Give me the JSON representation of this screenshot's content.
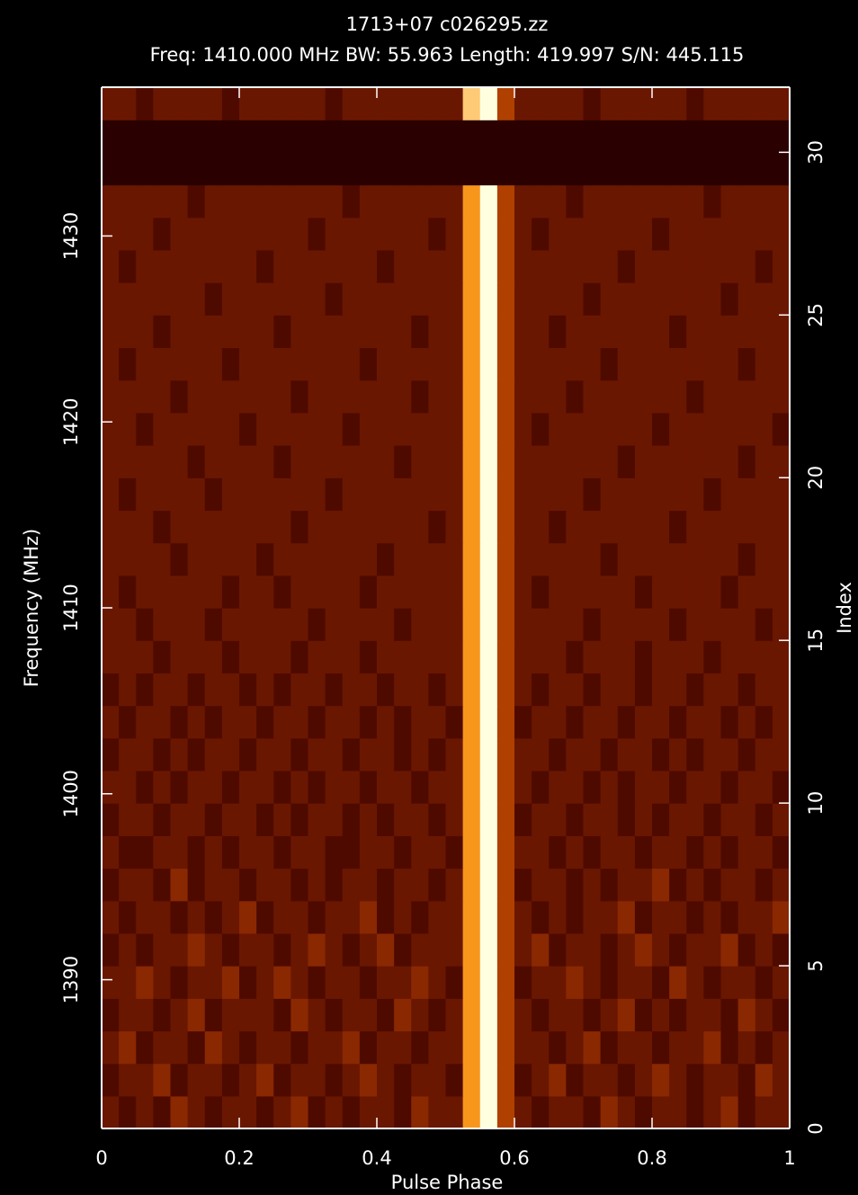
{
  "chart_data": {
    "type": "heatmap",
    "title": "1713+07 c026295.zz",
    "subtitle": "Freq: 1410.000 MHz BW: 55.963 Length: 419.997 S/N: 445.115",
    "x_label": "Pulse Phase",
    "y_label": "Frequency (MHz)",
    "y2_label": "Index",
    "xlim": [
      0,
      1
    ],
    "xticks": [
      0,
      0.2,
      0.4,
      0.6,
      0.8,
      1
    ],
    "ylim": [
      1382,
      1438
    ],
    "yticks": [
      1390,
      1400,
      1410,
      1420,
      1430
    ],
    "y2lim": [
      0,
      32
    ],
    "y2ticks": [
      0,
      5,
      10,
      15,
      20,
      25,
      30
    ],
    "zlim": [
      0,
      9
    ],
    "colormap": [
      "#2a0100",
      "#4a0800",
      "#7a1e02",
      "#c04a00",
      "#ffa020",
      "#ffffe0"
    ],
    "values": [
      [
        3,
        2,
        3,
        2,
        4,
        3,
        2,
        3,
        3,
        2,
        3,
        4,
        2,
        3,
        2,
        3,
        3,
        2,
        4,
        3,
        3,
        7,
        9,
        5,
        3,
        2,
        3,
        3,
        2,
        4,
        3,
        2,
        3,
        3,
        2,
        3,
        4,
        2,
        3,
        3
      ],
      [
        2,
        3,
        3,
        4,
        2,
        3,
        3,
        2,
        3,
        4,
        2,
        3,
        3,
        2,
        3,
        4,
        3,
        2,
        3,
        3,
        2,
        7,
        9,
        5,
        2,
        3,
        4,
        2,
        3,
        3,
        2,
        3,
        4,
        3,
        2,
        3,
        3,
        2,
        4,
        3
      ],
      [
        3,
        4,
        2,
        3,
        3,
        2,
        4,
        3,
        2,
        3,
        3,
        2,
        3,
        3,
        4,
        2,
        3,
        3,
        2,
        3,
        3,
        7,
        9,
        5,
        3,
        3,
        2,
        3,
        4,
        2,
        3,
        3,
        2,
        3,
        3,
        4,
        2,
        3,
        2,
        3
      ],
      [
        2,
        3,
        3,
        2,
        3,
        4,
        2,
        3,
        3,
        3,
        2,
        4,
        3,
        2,
        3,
        3,
        2,
        4,
        3,
        2,
        3,
        7,
        9,
        5,
        3,
        2,
        3,
        3,
        2,
        3,
        4,
        2,
        3,
        2,
        3,
        3,
        2,
        4,
        3,
        2
      ],
      [
        3,
        3,
        4,
        3,
        2,
        3,
        3,
        4,
        2,
        3,
        4,
        3,
        2,
        3,
        3,
        2,
        3,
        3,
        4,
        3,
        2,
        7,
        9,
        5,
        2,
        3,
        3,
        4,
        3,
        2,
        3,
        3,
        2,
        4,
        3,
        2,
        3,
        3,
        2,
        3
      ],
      [
        2,
        3,
        2,
        3,
        3,
        4,
        3,
        2,
        3,
        3,
        2,
        3,
        4,
        3,
        2,
        3,
        4,
        2,
        3,
        3,
        3,
        7,
        9,
        5,
        3,
        4,
        2,
        3,
        3,
        2,
        3,
        4,
        3,
        2,
        3,
        3,
        4,
        2,
        3,
        2
      ],
      [
        3,
        2,
        3,
        3,
        2,
        3,
        2,
        3,
        4,
        2,
        3,
        3,
        2,
        3,
        3,
        4,
        2,
        3,
        2,
        3,
        3,
        7,
        9,
        5,
        3,
        2,
        3,
        2,
        3,
        3,
        4,
        2,
        3,
        3,
        2,
        3,
        2,
        3,
        3,
        4
      ],
      [
        2,
        3,
        3,
        2,
        4,
        2,
        3,
        3,
        2,
        3,
        3,
        2,
        3,
        2,
        3,
        3,
        2,
        3,
        3,
        2,
        3,
        7,
        9,
        5,
        2,
        3,
        3,
        2,
        3,
        2,
        3,
        3,
        4,
        2,
        3,
        2,
        3,
        3,
        2,
        3
      ],
      [
        3,
        2,
        2,
        3,
        3,
        2,
        3,
        2,
        3,
        3,
        2,
        3,
        3,
        2,
        2,
        3,
        3,
        2,
        3,
        3,
        2,
        7,
        9,
        5,
        3,
        3,
        2,
        3,
        2,
        3,
        3,
        2,
        3,
        3,
        2,
        3,
        2,
        3,
        3,
        2
      ],
      [
        2,
        3,
        3,
        2,
        3,
        3,
        2,
        3,
        3,
        2,
        3,
        2,
        3,
        3,
        2,
        3,
        2,
        3,
        3,
        2,
        3,
        7,
        9,
        5,
        2,
        3,
        3,
        2,
        3,
        3,
        2,
        3,
        2,
        3,
        3,
        2,
        3,
        3,
        2,
        3
      ],
      [
        3,
        3,
        2,
        3,
        2,
        3,
        3,
        2,
        3,
        3,
        2,
        3,
        2,
        3,
        3,
        2,
        3,
        3,
        2,
        3,
        3,
        7,
        9,
        5,
        3,
        2,
        3,
        3,
        2,
        3,
        2,
        3,
        3,
        2,
        3,
        3,
        2,
        3,
        3,
        2
      ],
      [
        2,
        3,
        3,
        2,
        3,
        2,
        3,
        3,
        2,
        3,
        3,
        2,
        3,
        3,
        2,
        3,
        3,
        2,
        3,
        2,
        3,
        7,
        9,
        5,
        3,
        3,
        2,
        3,
        3,
        2,
        3,
        3,
        2,
        3,
        2,
        3,
        3,
        2,
        3,
        3
      ],
      [
        3,
        2,
        3,
        3,
        2,
        3,
        2,
        3,
        3,
        2,
        3,
        3,
        2,
        3,
        3,
        2,
        3,
        2,
        3,
        3,
        2,
        7,
        9,
        5,
        2,
        3,
        3,
        2,
        3,
        3,
        2,
        3,
        3,
        2,
        3,
        3,
        2,
        3,
        2,
        3
      ],
      [
        2,
        3,
        2,
        3,
        3,
        2,
        3,
        3,
        2,
        3,
        2,
        3,
        3,
        2,
        3,
        3,
        2,
        3,
        3,
        2,
        3,
        7,
        9,
        5,
        3,
        2,
        3,
        3,
        2,
        3,
        3,
        2,
        3,
        3,
        2,
        3,
        3,
        2,
        3,
        3
      ],
      [
        3,
        3,
        3,
        2,
        3,
        3,
        3,
        2,
        3,
        3,
        3,
        2,
        3,
        3,
        3,
        2,
        3,
        3,
        3,
        3,
        3,
        7,
        9,
        5,
        3,
        3,
        3,
        2,
        3,
        3,
        3,
        2,
        3,
        3,
        3,
        2,
        3,
        3,
        3,
        3
      ],
      [
        3,
        3,
        2,
        3,
        3,
        3,
        2,
        3,
        3,
        3,
        3,
        3,
        2,
        3,
        3,
        3,
        3,
        2,
        3,
        3,
        3,
        7,
        9,
        5,
        3,
        3,
        3,
        3,
        2,
        3,
        3,
        3,
        3,
        2,
        3,
        3,
        3,
        3,
        2,
        3
      ],
      [
        3,
        2,
        3,
        3,
        3,
        3,
        3,
        2,
        3,
        3,
        2,
        3,
        3,
        3,
        3,
        2,
        3,
        3,
        3,
        3,
        3,
        7,
        9,
        5,
        3,
        2,
        3,
        3,
        3,
        3,
        3,
        2,
        3,
        3,
        3,
        3,
        2,
        3,
        3,
        3
      ],
      [
        3,
        3,
        3,
        3,
        2,
        3,
        3,
        3,
        3,
        2,
        3,
        3,
        3,
        3,
        3,
        3,
        2,
        3,
        3,
        3,
        3,
        7,
        9,
        5,
        3,
        3,
        3,
        3,
        3,
        2,
        3,
        3,
        3,
        3,
        3,
        3,
        3,
        2,
        3,
        3
      ],
      [
        3,
        3,
        3,
        2,
        3,
        3,
        3,
        3,
        3,
        3,
        3,
        2,
        3,
        3,
        3,
        3,
        3,
        3,
        3,
        2,
        3,
        7,
        9,
        5,
        3,
        3,
        2,
        3,
        3,
        3,
        3,
        3,
        3,
        2,
        3,
        3,
        3,
        3,
        3,
        3
      ],
      [
        3,
        2,
        3,
        3,
        3,
        3,
        2,
        3,
        3,
        3,
        3,
        3,
        3,
        2,
        3,
        3,
        3,
        3,
        3,
        3,
        3,
        7,
        9,
        5,
        3,
        3,
        3,
        3,
        2,
        3,
        3,
        3,
        3,
        3,
        3,
        2,
        3,
        3,
        3,
        3
      ],
      [
        3,
        3,
        3,
        3,
        3,
        2,
        3,
        3,
        3,
        3,
        2,
        3,
        3,
        3,
        3,
        3,
        3,
        2,
        3,
        3,
        3,
        7,
        9,
        5,
        3,
        3,
        3,
        3,
        3,
        3,
        2,
        3,
        3,
        3,
        3,
        3,
        3,
        2,
        3,
        3
      ],
      [
        3,
        3,
        2,
        3,
        3,
        3,
        3,
        3,
        2,
        3,
        3,
        3,
        3,
        3,
        2,
        3,
        3,
        3,
        3,
        3,
        3,
        7,
        9,
        5,
        3,
        2,
        3,
        3,
        3,
        3,
        3,
        3,
        2,
        3,
        3,
        3,
        3,
        3,
        3,
        2
      ],
      [
        3,
        3,
        3,
        3,
        2,
        3,
        3,
        3,
        3,
        3,
        3,
        2,
        3,
        3,
        3,
        3,
        3,
        3,
        2,
        3,
        3,
        7,
        9,
        5,
        3,
        3,
        3,
        2,
        3,
        3,
        3,
        3,
        3,
        3,
        2,
        3,
        3,
        3,
        3,
        3
      ],
      [
        3,
        2,
        3,
        3,
        3,
        3,
        3,
        2,
        3,
        3,
        3,
        3,
        3,
        3,
        3,
        2,
        3,
        3,
        3,
        3,
        3,
        7,
        9,
        5,
        3,
        3,
        3,
        3,
        3,
        2,
        3,
        3,
        3,
        3,
        3,
        3,
        3,
        2,
        3,
        3
      ],
      [
        3,
        3,
        3,
        2,
        3,
        3,
        3,
        3,
        3,
        3,
        2,
        3,
        3,
        3,
        3,
        3,
        3,
        3,
        2,
        3,
        3,
        7,
        9,
        5,
        3,
        3,
        2,
        3,
        3,
        3,
        3,
        3,
        3,
        2,
        3,
        3,
        3,
        3,
        3,
        3
      ],
      [
        3,
        3,
        3,
        3,
        3,
        3,
        2,
        3,
        3,
        3,
        3,
        3,
        3,
        2,
        3,
        3,
        3,
        3,
        3,
        3,
        3,
        7,
        9,
        5,
        3,
        3,
        3,
        3,
        2,
        3,
        3,
        3,
        3,
        3,
        3,
        3,
        2,
        3,
        3,
        3
      ],
      [
        3,
        2,
        3,
        3,
        3,
        3,
        3,
        3,
        3,
        2,
        3,
        3,
        3,
        3,
        3,
        3,
        2,
        3,
        3,
        3,
        3,
        7,
        9,
        5,
        3,
        3,
        3,
        3,
        3,
        3,
        2,
        3,
        3,
        3,
        3,
        3,
        3,
        3,
        2,
        3
      ],
      [
        3,
        3,
        3,
        2,
        3,
        3,
        3,
        3,
        3,
        3,
        3,
        3,
        2,
        3,
        3,
        3,
        3,
        3,
        3,
        2,
        3,
        7,
        9,
        5,
        3,
        2,
        3,
        3,
        3,
        3,
        3,
        3,
        2,
        3,
        3,
        3,
        3,
        3,
        3,
        3
      ],
      [
        3,
        3,
        3,
        3,
        3,
        2,
        3,
        3,
        3,
        3,
        3,
        3,
        3,
        3,
        2,
        3,
        3,
        3,
        3,
        3,
        3,
        7,
        9,
        5,
        3,
        3,
        3,
        2,
        3,
        3,
        3,
        3,
        3,
        3,
        3,
        2,
        3,
        3,
        3,
        3
      ],
      [
        0,
        0,
        0,
        0,
        0,
        0,
        0,
        0,
        0,
        0,
        0,
        0,
        0,
        0,
        0,
        0,
        0,
        0,
        0,
        0,
        0,
        0,
        0,
        0,
        0,
        0,
        0,
        0,
        0,
        0,
        0,
        0,
        0,
        0,
        0,
        0,
        0,
        0,
        0,
        0
      ],
      [
        0,
        0,
        0,
        0,
        0,
        0,
        0,
        0,
        0,
        0,
        0,
        0,
        0,
        0,
        0,
        0,
        0,
        0,
        0,
        0,
        0,
        0,
        0,
        0,
        0,
        0,
        0,
        0,
        0,
        0,
        0,
        0,
        0,
        0,
        0,
        0,
        0,
        0,
        0,
        0
      ],
      [
        3,
        3,
        2,
        3,
        3,
        3,
        3,
        2,
        3,
        3,
        3,
        3,
        3,
        2,
        3,
        3,
        3,
        3,
        3,
        3,
        3,
        8,
        9,
        5,
        3,
        3,
        3,
        3,
        2,
        3,
        3,
        3,
        3,
        3,
        2,
        3,
        3,
        3,
        3,
        3
      ]
    ]
  }
}
